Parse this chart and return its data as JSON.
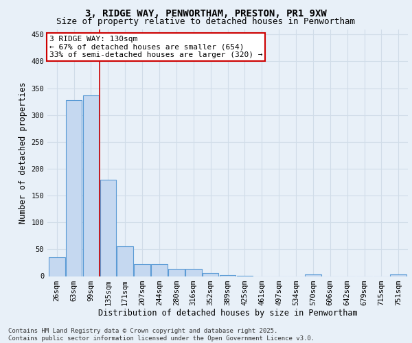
{
  "title1": "3, RIDGE WAY, PENWORTHAM, PRESTON, PR1 9XW",
  "title2": "Size of property relative to detached houses in Penwortham",
  "xlabel": "Distribution of detached houses by size in Penwortham",
  "ylabel": "Number of detached properties",
  "categories": [
    "26sqm",
    "63sqm",
    "99sqm",
    "135sqm",
    "171sqm",
    "207sqm",
    "244sqm",
    "280sqm",
    "316sqm",
    "352sqm",
    "389sqm",
    "425sqm",
    "461sqm",
    "497sqm",
    "534sqm",
    "570sqm",
    "606sqm",
    "642sqm",
    "679sqm",
    "715sqm",
    "751sqm"
  ],
  "values": [
    35,
    328,
    337,
    180,
    55,
    23,
    23,
    14,
    13,
    6,
    2,
    1,
    0,
    0,
    0,
    3,
    0,
    0,
    0,
    0,
    3
  ],
  "bar_color": "#c5d8f0",
  "bar_edge_color": "#5b9bd5",
  "bar_linewidth": 0.8,
  "vline_x": 2.5,
  "vline_color": "#cc0000",
  "ylim": [
    0,
    460
  ],
  "yticks": [
    0,
    50,
    100,
    150,
    200,
    250,
    300,
    350,
    400,
    450
  ],
  "annotation_text": "3 RIDGE WAY: 130sqm\n← 67% of detached houses are smaller (654)\n33% of semi-detached houses are larger (320) →",
  "annotation_box_color": "#ffffff",
  "annotation_border_color": "#cc0000",
  "footer_text": "Contains HM Land Registry data © Crown copyright and database right 2025.\nContains public sector information licensed under the Open Government Licence v3.0.",
  "background_color": "#e8f0f8",
  "grid_color": "#d0dce8",
  "title1_fontsize": 10,
  "title2_fontsize": 9,
  "xlabel_fontsize": 8.5,
  "ylabel_fontsize": 8.5,
  "tick_fontsize": 7.5,
  "annotation_fontsize": 8,
  "footer_fontsize": 6.5
}
